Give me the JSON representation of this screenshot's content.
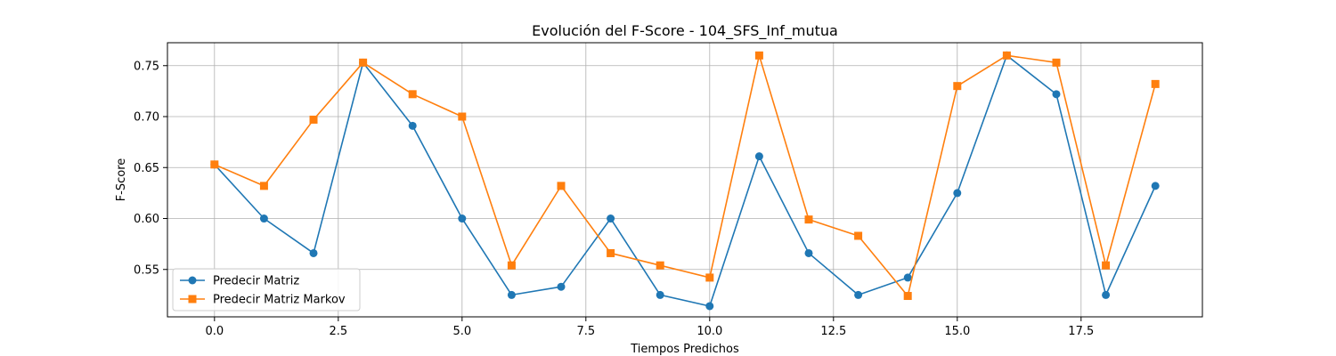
{
  "chart_data": {
    "type": "line",
    "title": "Evolución del F-Score - 104_SFS_Inf_mutua",
    "xlabel": "Tiempos Predichos",
    "ylabel": "F-Score",
    "x": [
      0,
      1,
      2,
      3,
      4,
      5,
      6,
      7,
      8,
      9,
      10,
      11,
      12,
      13,
      14,
      15,
      16,
      17,
      18,
      19
    ],
    "xlim": [
      -0.95,
      19.95
    ],
    "ylim": [
      0.5035,
      0.7725
    ],
    "xticks": [
      "0.0",
      "2.5",
      "5.0",
      "7.5",
      "10.0",
      "12.5",
      "15.0",
      "17.5"
    ],
    "yticks": [
      "0.55",
      "0.60",
      "0.65",
      "0.70",
      "0.75"
    ],
    "grid": true,
    "legend_position": "bottom-left",
    "series": [
      {
        "name": "Predecir Matriz",
        "color": "#1f77b4",
        "marker": "circle",
        "values": [
          0.653,
          0.6,
          0.566,
          0.753,
          0.691,
          0.6,
          0.525,
          0.533,
          0.6,
          0.525,
          0.514,
          0.661,
          0.566,
          0.525,
          0.542,
          0.625,
          0.76,
          0.722,
          0.525,
          0.632
        ]
      },
      {
        "name": "Predecir Matriz Markov",
        "color": "#ff7f0e",
        "marker": "square",
        "values": [
          0.653,
          0.632,
          0.697,
          0.753,
          0.722,
          0.7,
          0.554,
          0.632,
          0.566,
          0.554,
          0.542,
          0.76,
          0.599,
          0.583,
          0.524,
          0.73,
          0.76,
          0.753,
          0.554,
          0.732
        ]
      }
    ]
  }
}
